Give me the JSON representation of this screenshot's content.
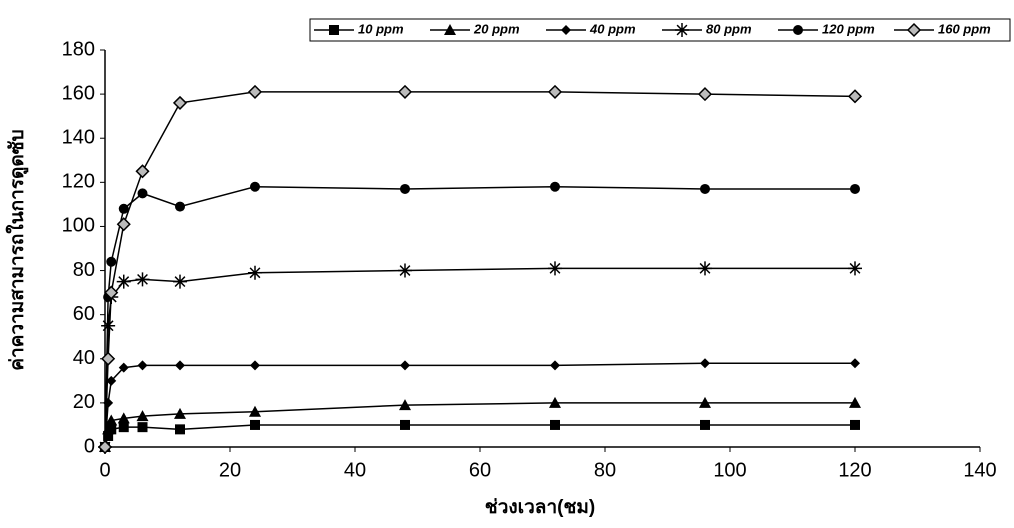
{
  "chart_data": {
    "type": "line",
    "x_label": "ช่วงเวลา(ชม)",
    "y_label": "ค่าความสามารถในการดูดซับ",
    "x": [
      0,
      0.5,
      1,
      3,
      6,
      12,
      24,
      48,
      72,
      96,
      120
    ],
    "series": [
      {
        "name": "10 ppm",
        "color": "#000000",
        "marker": "square",
        "values": [
          0,
          5,
          8,
          9,
          9,
          8,
          10,
          10,
          10,
          10,
          10
        ]
      },
      {
        "name": "20 ppm",
        "color": "#000000",
        "marker": "triangle",
        "values": [
          0,
          8,
          12,
          13,
          14,
          15,
          16,
          19,
          20,
          20,
          20
        ]
      },
      {
        "name": "40 ppm",
        "color": "#000000",
        "marker": "diamond",
        "values": [
          0,
          20,
          30,
          36,
          37,
          37,
          37,
          37,
          37,
          38,
          38
        ]
      },
      {
        "name": "80 ppm",
        "color": "#000000",
        "marker": "star",
        "values": [
          0,
          55,
          68,
          75,
          76,
          75,
          79,
          80,
          81,
          81,
          81
        ]
      },
      {
        "name": "120 ppm",
        "color": "#000000",
        "marker": "circle",
        "values": [
          0,
          68,
          84,
          108,
          115,
          109,
          118,
          117,
          118,
          117,
          117
        ]
      },
      {
        "name": "160 ppm",
        "color": "#000000",
        "marker": "diamond-open",
        "values": [
          0,
          40,
          70,
          101,
          125,
          156,
          161,
          161,
          161,
          160,
          159
        ]
      }
    ],
    "xlim": [
      0,
      140
    ],
    "xticks": [
      0,
      20,
      40,
      60,
      80,
      100,
      120,
      140
    ],
    "ylim": [
      0,
      180
    ],
    "yticks": [
      0,
      20,
      40,
      60,
      80,
      100,
      120,
      140,
      160,
      180
    ],
    "grid": false,
    "legend": "top"
  }
}
